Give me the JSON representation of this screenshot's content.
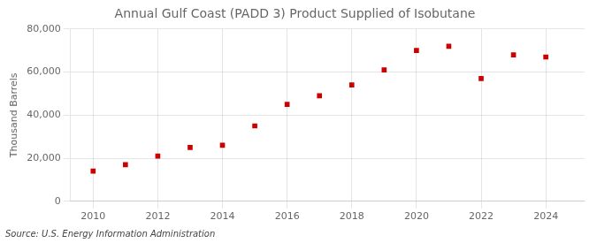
{
  "chart_data": {
    "type": "scatter",
    "title": "Annual Gulf Coast (PADD 3) Product Supplied of Isobutane",
    "ylabel": "Thousand Barrels",
    "annotation": "Source: U.S. Energy Information Administration",
    "x": [
      2010,
      2011,
      2012,
      2013,
      2014,
      2015,
      2016,
      2017,
      2018,
      2019,
      2020,
      2021,
      2022,
      2023,
      2024
    ],
    "values": [
      14000,
      17000,
      21000,
      25000,
      26000,
      35000,
      45000,
      49000,
      54000,
      61000,
      70000,
      72000,
      57000,
      68000,
      67000
    ],
    "color": "#cc0000",
    "marker": "square",
    "xlim": [
      2009.3,
      2025.2
    ],
    "xticks": [
      2010,
      2012,
      2014,
      2016,
      2018,
      2020,
      2022,
      2024
    ],
    "ylim": [
      0,
      80000
    ],
    "yticks": [
      0,
      {
        "value": 20000,
        "label": "20,000"
      },
      {
        "value": 40000,
        "label": "40,000"
      },
      {
        "value": 60000,
        "label": "60,000"
      },
      {
        "value": 80000,
        "label": "80,000"
      }
    ],
    "grid": true
  }
}
